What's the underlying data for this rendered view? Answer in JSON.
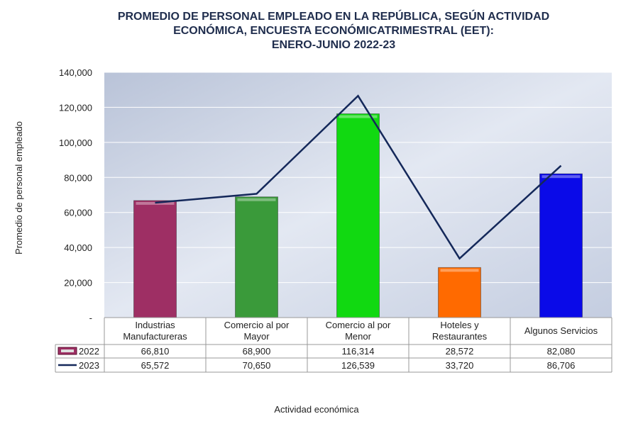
{
  "chart_data": {
    "type": "bar",
    "title": [
      "PROMEDIO DE PERSONAL EMPLEADO EN LA REPÚBLICA, SEGÚN ACTIVIDAD",
      "ECONÓMICA, ENCUESTA ECONÓMICATRIMESTRAL (EET):",
      "ENERO-JUNIO 2022-23"
    ],
    "xlabel": "Actividad económica",
    "ylabel": "Promedio de personal empleado",
    "ylim": [
      0,
      140000
    ],
    "yticks": [
      0,
      20000,
      40000,
      60000,
      80000,
      100000,
      120000,
      140000
    ],
    "ytick_labels": [
      "-",
      "20,000",
      "40,000",
      "60,000",
      "80,000",
      "100,000",
      "120,000",
      "140,000"
    ],
    "categories": [
      [
        "Industrias",
        "Manufactureras"
      ],
      [
        "Comercio al por",
        "Mayor"
      ],
      [
        "Comercio al por",
        "Menor"
      ],
      [
        "Hoteles y",
        "Restaurantes"
      ],
      [
        "Algunos Servicios"
      ]
    ],
    "series": [
      {
        "name": "2022",
        "type": "bar",
        "values": [
          66810,
          68900,
          116314,
          28572,
          82080
        ],
        "labels": [
          "66,810",
          "68,900",
          "116,314",
          "28,572",
          "82,080"
        ],
        "colors": [
          "#9e2f64",
          "#3a9a3a",
          "#11d911",
          "#ff6a00",
          "#0a0ae8"
        ]
      },
      {
        "name": "2023",
        "type": "line",
        "values": [
          65572,
          70650,
          126539,
          33720,
          86706
        ],
        "labels": [
          "65,572",
          "70,650",
          "126,539",
          "33,720",
          "86,706"
        ],
        "color": "#14285a"
      }
    ],
    "legend": "data-table"
  }
}
